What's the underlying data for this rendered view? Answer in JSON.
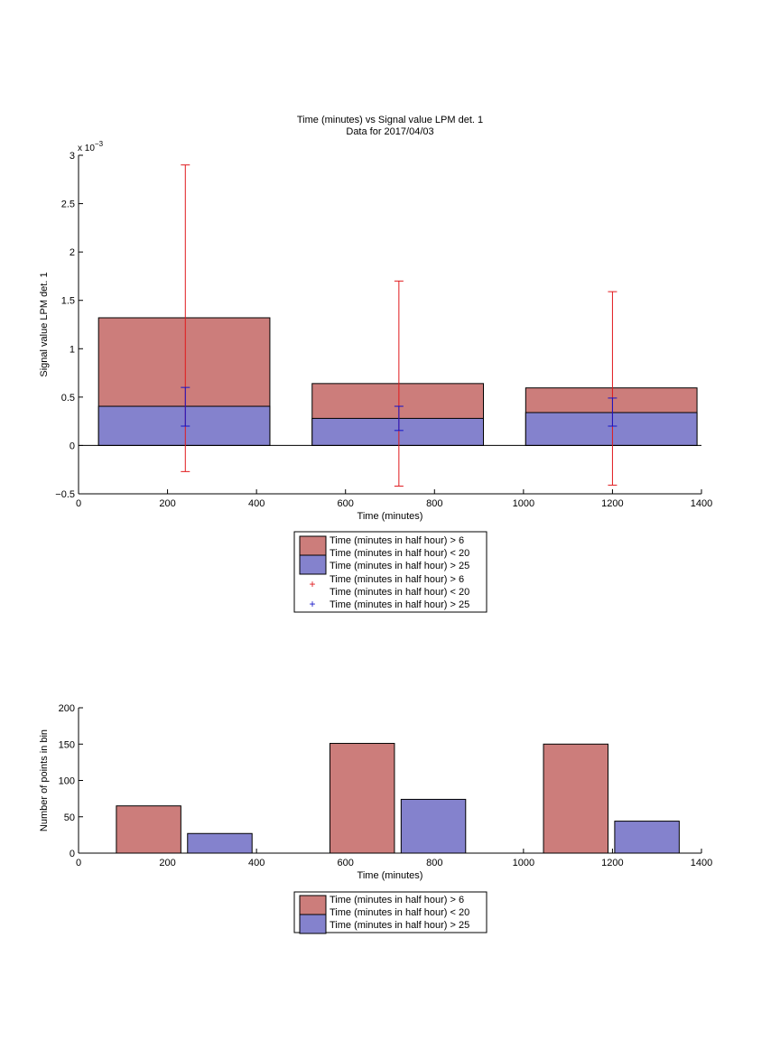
{
  "top_chart": {
    "title_line1": "Time (minutes) vs Signal value LPM det. 1",
    "title_line2": "Data for 2017/04/03",
    "exponent_base": "x 10",
    "exponent_power": "−3",
    "legend": [
      "Time (minutes in half hour) > 6",
      "Time (minutes in half hour) < 20",
      "Time (minutes in half hour) > 25",
      "Time (minutes in half hour) > 6",
      "Time (minutes in half hour) < 20",
      "Time (minutes in half hour) > 25"
    ]
  },
  "bottom_chart": {
    "legend": [
      "Time (minutes in half hour) > 6",
      "Time (minutes in half hour) < 20",
      "Time (minutes in half hour) > 25"
    ]
  },
  "colors": {
    "red_fill": "#cc7d7b",
    "blue_fill": "#8482cd",
    "red_err": "#e0181c",
    "blue_err": "#1414c8"
  },
  "chart_data": [
    {
      "type": "bar",
      "title": "Time (minutes) vs Signal value LPM det. 1 / Data for 2017/04/03",
      "xlabel": "Time (minutes)",
      "ylabel": "Signal value LPM det. 1",
      "xlim": [
        0,
        1400
      ],
      "ylim": [
        -0.5,
        3
      ],
      "y_scale_factor": "x 10^-3",
      "xticks": [
        0,
        200,
        400,
        600,
        800,
        1000,
        1200,
        1400
      ],
      "yticks": [
        -0.5,
        0,
        0.5,
        1,
        1.5,
        2,
        2.5,
        3
      ],
      "bar_ranges": [
        [
          45,
          430
        ],
        [
          525,
          910
        ],
        [
          1005,
          1390
        ]
      ],
      "series": [
        {
          "name": "Time (minutes in half hour) > 6 / Time (minutes in half hour) < 20",
          "values": [
            1.32,
            0.64,
            0.595
          ],
          "errorbar_x": [
            240,
            720,
            1200
          ],
          "errorbar_low": [
            -0.27,
            -0.42,
            -0.41
          ],
          "errorbar_high": [
            2.9,
            1.7,
            1.59
          ]
        },
        {
          "name": "Time (minutes in half hour) > 25",
          "values": [
            0.405,
            0.28,
            0.34
          ],
          "errorbar_x": [
            240,
            720,
            1200
          ],
          "errorbar_low": [
            0.2,
            0.155,
            0.2
          ],
          "errorbar_high": [
            0.6,
            0.405,
            0.49
          ]
        }
      ]
    },
    {
      "type": "bar",
      "xlabel": "Time (minutes)",
      "ylabel": "Number of points in bin",
      "xlim": [
        0,
        1400
      ],
      "ylim": [
        0,
        200
      ],
      "xticks": [
        0,
        200,
        400,
        600,
        800,
        1000,
        1200,
        1400
      ],
      "yticks": [
        0,
        50,
        100,
        150,
        200
      ],
      "series": [
        {
          "name": "Time (minutes in half hour) > 6 / Time (minutes in half hour) < 20",
          "x_ranges": [
            [
              85,
              230
            ],
            [
              565,
              710
            ],
            [
              1045,
              1190
            ]
          ],
          "values": [
            65,
            151,
            150
          ]
        },
        {
          "name": "Time (minutes in half hour) > 25",
          "x_ranges": [
            [
              245,
              390
            ],
            [
              725,
              870
            ],
            [
              1205,
              1350
            ]
          ],
          "values": [
            27,
            74,
            44
          ]
        }
      ]
    }
  ]
}
